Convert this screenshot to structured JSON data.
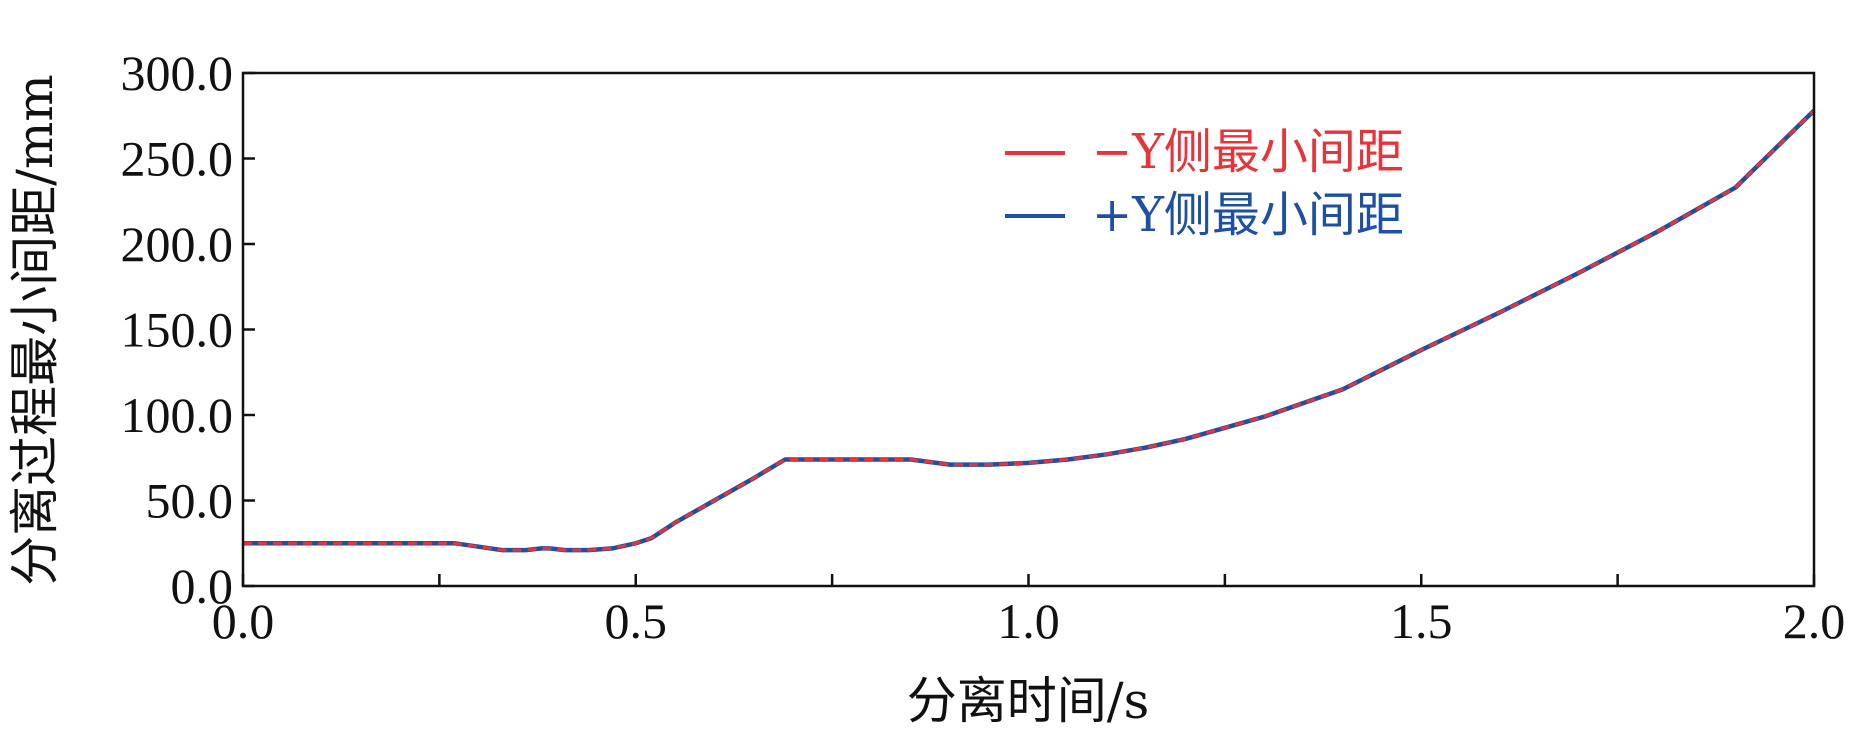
{
  "chart_data": {
    "type": "line",
    "title": "",
    "xlabel": "分离时间/s",
    "ylabel": "分离过程最小间距/mm",
    "xlim": [
      0.0,
      2.0
    ],
    "ylim": [
      0.0,
      300.0
    ],
    "xticks": [
      0.0,
      0.5,
      1.0,
      1.5,
      2.0
    ],
    "xtick_labels": [
      "0.0",
      "0.5",
      "1.0",
      "1.5",
      "2.0"
    ],
    "xminor_ticks": [
      0.25,
      0.75,
      1.25,
      1.75
    ],
    "yticks": [
      0,
      50,
      100,
      150,
      200,
      250,
      300
    ],
    "ytick_labels": [
      "0.0",
      "50.0",
      "100.0",
      "150.0",
      "200.0",
      "250.0",
      "300.0"
    ],
    "grid": false,
    "legend_position": "top-center",
    "series": [
      {
        "name": "−Y侧最小间距",
        "color": "#e8333a",
        "style": "dashed",
        "x": [
          0.0,
          0.1,
          0.2,
          0.27,
          0.3,
          0.33,
          0.36,
          0.38,
          0.39,
          0.41,
          0.44,
          0.47,
          0.5,
          0.52,
          0.55,
          0.6,
          0.65,
          0.69,
          0.75,
          0.85,
          0.9,
          0.95,
          1.0,
          1.05,
          1.1,
          1.15,
          1.2,
          1.3,
          1.4,
          1.5,
          1.6,
          1.7,
          1.8,
          1.9,
          2.0
        ],
        "y": [
          25,
          25,
          25,
          25,
          23,
          21,
          21,
          22,
          22,
          21,
          21,
          22,
          25,
          28,
          37,
          50,
          63,
          74,
          74,
          74,
          71,
          71,
          72,
          74,
          77,
          81,
          86,
          99,
          115,
          138,
          160,
          183,
          207,
          233,
          278
        ]
      },
      {
        "name": "+Y侧最小间距",
        "color": "#1d4fa3",
        "style": "solid",
        "x": [
          0.0,
          0.1,
          0.2,
          0.27,
          0.3,
          0.33,
          0.36,
          0.38,
          0.39,
          0.41,
          0.44,
          0.47,
          0.5,
          0.52,
          0.55,
          0.6,
          0.65,
          0.69,
          0.75,
          0.85,
          0.9,
          0.95,
          1.0,
          1.05,
          1.1,
          1.15,
          1.2,
          1.3,
          1.4,
          1.5,
          1.6,
          1.7,
          1.8,
          1.9,
          2.0
        ],
        "y": [
          25,
          25,
          25,
          25,
          23,
          21,
          21,
          22,
          22,
          21,
          21,
          22,
          25,
          28,
          37,
          50,
          63,
          74,
          74,
          74,
          71,
          71,
          72,
          74,
          77,
          81,
          86,
          99,
          115,
          138,
          160,
          183,
          207,
          233,
          278
        ]
      }
    ]
  }
}
